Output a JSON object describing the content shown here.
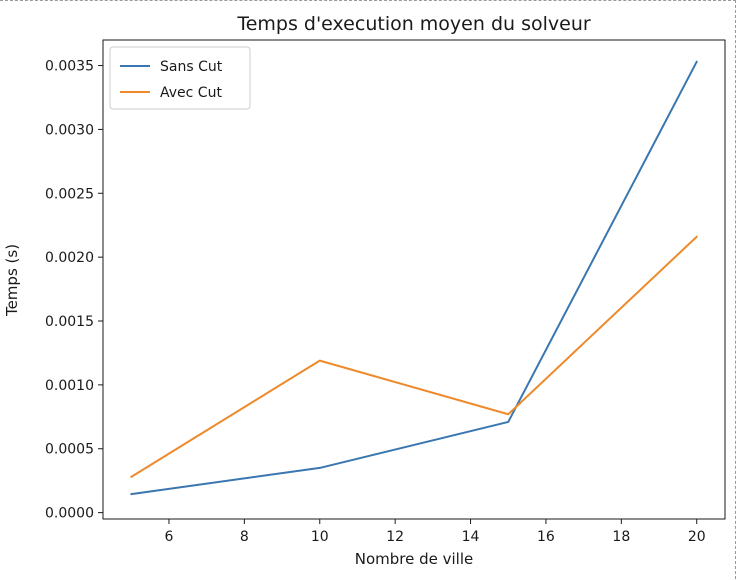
{
  "chart_data": {
    "type": "line",
    "title": "Temps d'execution moyen du solveur",
    "xlabel": "Nombre de ville",
    "ylabel": "Temps (s)",
    "x": [
      5,
      10,
      15,
      20
    ],
    "xlim": [
      4.25,
      20.75
    ],
    "ylim": [
      -5e-05,
      0.0037
    ],
    "xticks": [
      6,
      8,
      10,
      12,
      14,
      16,
      18,
      20
    ],
    "yticks": [
      0.0,
      0.0005,
      0.001,
      0.0015,
      0.002,
      0.0025,
      0.003,
      0.0035
    ],
    "ytick_labels": [
      "0.0000",
      "0.0005",
      "0.0010",
      "0.0015",
      "0.0020",
      "0.0025",
      "0.0030",
      "0.0035"
    ],
    "grid": false,
    "legend_position": "top-left",
    "series": [
      {
        "name": "Sans Cut",
        "color": "#3a77b0",
        "values": [
          0.000145,
          0.00035,
          0.00071,
          0.00353
        ]
      },
      {
        "name": "Avec Cut",
        "color": "#ee8a2c",
        "values": [
          0.00028,
          0.00119,
          0.00077,
          0.00216
        ]
      }
    ]
  }
}
